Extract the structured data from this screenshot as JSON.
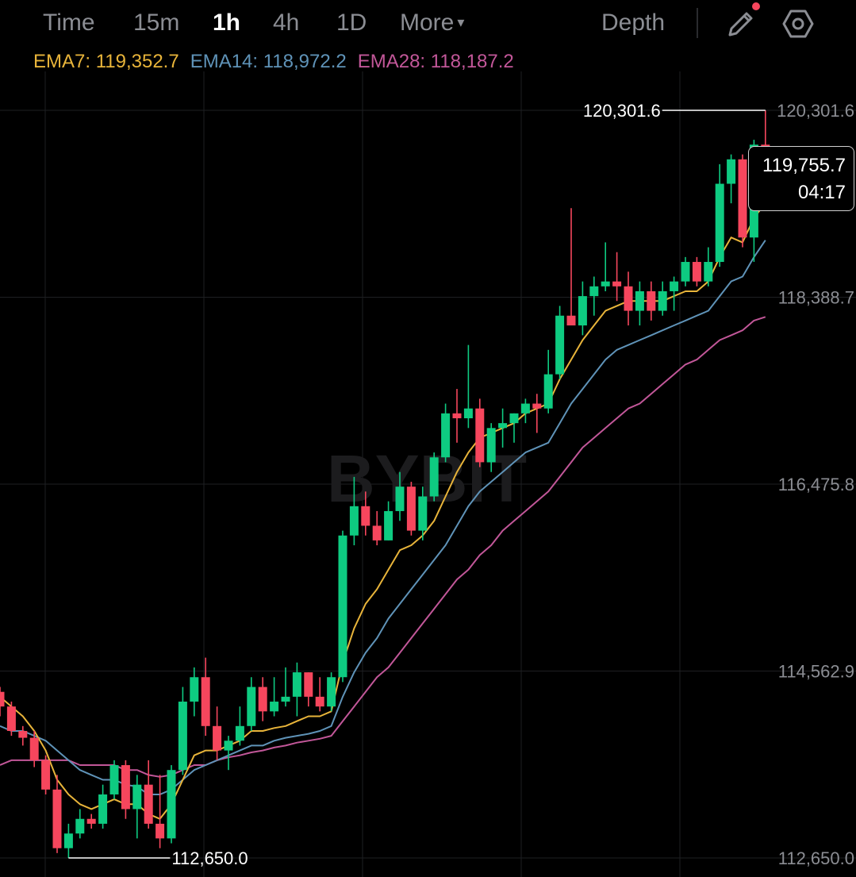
{
  "toolbar": {
    "timeframes": [
      "Time",
      "15m",
      "1h",
      "4h",
      "1D",
      "More"
    ],
    "active": "1h",
    "depth_label": "Depth",
    "more_indicator": "▾",
    "icons": {
      "draw": "pencil-icon",
      "settings": "hexagon-gear-icon"
    },
    "notification_color": "#f6465d"
  },
  "indicators": {
    "ema7": {
      "label": "EMA7: 119,352.7",
      "color": "#e8b43a"
    },
    "ema14": {
      "label": "EMA14: 118,972.2",
      "color": "#5f93b8"
    },
    "ema28": {
      "label": "EMA28: 118,187.2",
      "color": "#c25799"
    }
  },
  "current_price": {
    "value": "119,755.7",
    "countdown": "04:17"
  },
  "watermark": "BYBIT",
  "colors": {
    "up": "#0ecb81",
    "down": "#f6465d",
    "grid": "#1e1f22",
    "axis_text": "#8b8d93"
  },
  "chart_data": {
    "type": "candlestick",
    "interval": "1h",
    "y_axis_labels": [
      "120,301.6",
      "118,388.7",
      "116,475.8",
      "114,562.9",
      "112,650.0"
    ],
    "y_axis_values": [
      120301.6,
      118388.7,
      116475.8,
      114562.9,
      112650.0
    ],
    "high_marker": {
      "label": "120,301.6",
      "value": 120301.6
    },
    "low_marker": {
      "label": "112,650.0",
      "value": 112650.0
    },
    "candles": [
      [
        114350,
        114400,
        114100,
        114200
      ],
      [
        114200,
        114250,
        113900,
        113950
      ],
      [
        113950,
        114000,
        113800,
        113880
      ],
      [
        113880,
        113950,
        113580,
        113650
      ],
      [
        113650,
        113700,
        113300,
        113350
      ],
      [
        113350,
        113500,
        112700,
        112750
      ],
      [
        112750,
        113000,
        112650,
        112900
      ],
      [
        112900,
        113150,
        112850,
        113050
      ],
      [
        113050,
        113100,
        112950,
        113000
      ],
      [
        113000,
        113400,
        112950,
        113300
      ],
      [
        113300,
        113650,
        113250,
        113600
      ],
      [
        113600,
        113650,
        113050,
        113150
      ],
      [
        113150,
        113500,
        112850,
        113400
      ],
      [
        113400,
        113650,
        112950,
        113000
      ],
      [
        113000,
        113500,
        112750,
        112850
      ],
      [
        112850,
        113600,
        112800,
        113550
      ],
      [
        113550,
        114400,
        113500,
        114250
      ],
      [
        114250,
        114600,
        114100,
        114500
      ],
      [
        114500,
        114700,
        113900,
        114000
      ],
      [
        114000,
        114200,
        113650,
        113750
      ],
      [
        113750,
        113900,
        113550,
        113850
      ],
      [
        113850,
        114200,
        113800,
        114000
      ],
      [
        114000,
        114500,
        113950,
        114400
      ],
      [
        114400,
        114500,
        114050,
        114150
      ],
      [
        114150,
        114500,
        114100,
        114250
      ],
      [
        114250,
        114600,
        114200,
        114300
      ],
      [
        114300,
        114650,
        114100,
        114550
      ],
      [
        114550,
        114550,
        114200,
        114300
      ],
      [
        114300,
        114500,
        114150,
        114200
      ],
      [
        114200,
        114550,
        114150,
        114500
      ],
      [
        114500,
        116000,
        114450,
        115950
      ],
      [
        115950,
        116550,
        115850,
        116250
      ],
      [
        116250,
        116400,
        115950,
        116050
      ],
      [
        116050,
        116200,
        115850,
        115900
      ],
      [
        115900,
        116300,
        115900,
        116200
      ],
      [
        116200,
        116600,
        116100,
        116450
      ],
      [
        116450,
        116500,
        115950,
        116000
      ],
      [
        116000,
        116450,
        115900,
        116350
      ],
      [
        116350,
        116800,
        116300,
        116750
      ],
      [
        116750,
        117300,
        116700,
        117200
      ],
      [
        117200,
        117450,
        116900,
        117150
      ],
      [
        117150,
        117900,
        117050,
        117250
      ],
      [
        117250,
        117350,
        116650,
        116700
      ],
      [
        116700,
        117100,
        116600,
        117050
      ],
      [
        117050,
        117250,
        116850,
        117100
      ],
      [
        117100,
        117200,
        116900,
        117200
      ],
      [
        117200,
        117350,
        117100,
        117300
      ],
      [
        117300,
        117400,
        117000,
        117250
      ],
      [
        117250,
        117850,
        117200,
        117600
      ],
      [
        117600,
        118300,
        117550,
        118200
      ],
      [
        118200,
        119300,
        118150,
        118100
      ],
      [
        118100,
        118550,
        118000,
        118400
      ],
      [
        118400,
        118600,
        118200,
        118500
      ],
      [
        118500,
        118950,
        118450,
        118550
      ],
      [
        118550,
        118850,
        118350,
        118500
      ],
      [
        118500,
        118650,
        118100,
        118250
      ],
      [
        118250,
        118550,
        118100,
        118450
      ],
      [
        118450,
        118550,
        118150,
        118250
      ],
      [
        118250,
        118550,
        118200,
        118450
      ],
      [
        118450,
        118600,
        118250,
        118550
      ],
      [
        118550,
        118800,
        118500,
        118750
      ],
      [
        118750,
        118800,
        118500,
        118550
      ],
      [
        118550,
        118900,
        118500,
        118750
      ],
      [
        118750,
        119750,
        118700,
        119550
      ],
      [
        119550,
        119850,
        119350,
        119800
      ],
      [
        119800,
        119850,
        118900,
        119000
      ],
      [
        119000,
        120000,
        118750,
        119950
      ],
      [
        119950,
        120301.6,
        119700,
        119755.7
      ]
    ],
    "ema7": [
      114300,
      114200,
      114100,
      113950,
      113750,
      113450,
      113300,
      113200,
      113150,
      113200,
      113250,
      113200,
      113200,
      113100,
      113050,
      113200,
      113450,
      113700,
      113750,
      113750,
      113800,
      113850,
      113950,
      113950,
      113980,
      114000,
      114050,
      114100,
      114100,
      114150,
      114650,
      115000,
      115250,
      115400,
      115600,
      115800,
      115850,
      115950,
      116100,
      116350,
      116600,
      116800,
      116950,
      117000,
      117050,
      117100,
      117200,
      117250,
      117300,
      117550,
      117750,
      117950,
      118100,
      118250,
      118300,
      118350,
      118350,
      118350,
      118350,
      118400,
      118450,
      118450,
      118550,
      118800,
      119000,
      118950,
      119200,
      119352.7
    ],
    "ema14": [
      114000,
      113950,
      113950,
      113900,
      113850,
      113750,
      113650,
      113550,
      113500,
      113450,
      113450,
      113400,
      113380,
      113300,
      113300,
      113350,
      113450,
      113550,
      113600,
      113650,
      113700,
      113750,
      113800,
      113800,
      113850,
      113880,
      113900,
      113920,
      113950,
      114000,
      114300,
      114550,
      114750,
      114900,
      115100,
      115250,
      115400,
      115550,
      115700,
      115850,
      116050,
      116250,
      116400,
      116500,
      116600,
      116700,
      116800,
      116850,
      116900,
      117100,
      117300,
      117450,
      117600,
      117750,
      117850,
      117900,
      117950,
      118000,
      118050,
      118100,
      118150,
      118200,
      118250,
      118400,
      118550,
      118600,
      118800,
      118972.2
    ],
    "ema28": [
      113600,
      113650,
      113650,
      113650,
      113650,
      113650,
      113650,
      113600,
      113600,
      113600,
      113600,
      113550,
      113550,
      113500,
      113480,
      113500,
      113550,
      113600,
      113600,
      113650,
      113680,
      113700,
      113730,
      113750,
      113780,
      113800,
      113830,
      113850,
      113870,
      113900,
      114050,
      114200,
      114350,
      114500,
      114600,
      114750,
      114900,
      115050,
      115200,
      115350,
      115500,
      115600,
      115750,
      115850,
      116000,
      116100,
      116200,
      116300,
      116400,
      116550,
      116700,
      116850,
      116950,
      117050,
      117150,
      117250,
      117300,
      117400,
      117500,
      117600,
      117700,
      117750,
      117850,
      117950,
      118000,
      118050,
      118150,
      118187.2
    ]
  }
}
